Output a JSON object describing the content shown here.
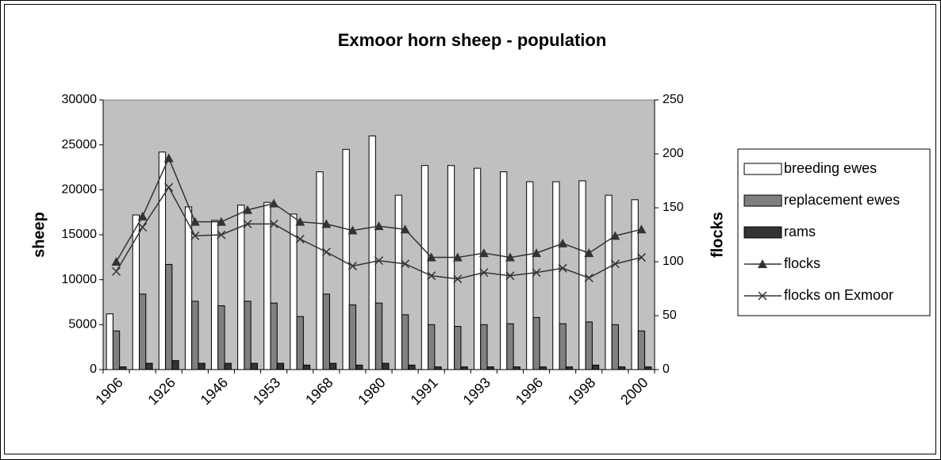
{
  "chart_data": {
    "type": "bar",
    "title": "Exmoor horn sheep  - population",
    "y_label": "sheep",
    "y2_label": "flocks",
    "categories": [
      "1906",
      null,
      "1926",
      null,
      "1946",
      null,
      "1953",
      null,
      "1968",
      null,
      "1980",
      null,
      "1991",
      null,
      "1993",
      null,
      "1996",
      null,
      "1998",
      null,
      "2000"
    ],
    "series": [
      {
        "name": "breeding ewes",
        "color": "#ffffff",
        "values": [
          6200,
          17200,
          24200,
          18100,
          16600,
          18300,
          18600,
          17300,
          22000,
          24500,
          26000,
          19400,
          22700,
          22700,
          22400,
          22000,
          20900,
          20900,
          21000,
          19400,
          18900
        ]
      },
      {
        "name": "replacement ewes",
        "color": "#808080",
        "values": [
          4300,
          8400,
          11700,
          7600,
          7100,
          7600,
          7400,
          5900,
          8400,
          7200,
          7400,
          6100,
          5000,
          4800,
          5000,
          5100,
          5800,
          5100,
          5300,
          5000,
          4300
        ]
      },
      {
        "name": "rams",
        "color": "#333333",
        "values": [
          300,
          700,
          1000,
          700,
          700,
          700,
          700,
          500,
          700,
          500,
          700,
          500,
          300,
          300,
          300,
          300,
          300,
          300,
          500,
          300,
          300
        ]
      },
      {
        "name": "flocks",
        "color": "#333333",
        "axis": "y2",
        "marker": "triangle",
        "values": [
          100,
          142,
          196,
          137,
          137,
          148,
          154,
          137,
          135,
          129,
          133,
          130,
          104,
          104,
          108,
          104,
          108,
          117,
          108,
          124,
          130
        ]
      },
      {
        "name": "flocks on Exmoor",
        "color": "#333333",
        "axis": "y2",
        "marker": "x",
        "values": [
          91,
          132,
          169,
          124,
          125,
          135,
          135,
          121,
          109,
          96,
          101,
          98,
          87,
          84,
          90,
          87,
          90,
          94,
          85,
          98,
          104
        ]
      }
    ],
    "ylim": [
      0,
      30000
    ],
    "yticks": [
      0,
      5000,
      10000,
      15000,
      20000,
      25000,
      30000
    ],
    "y2lim": [
      0,
      250
    ],
    "y2ticks": [
      0,
      50,
      100,
      150,
      200,
      250
    ],
    "grid": false,
    "plot_background": "#c0c0c0",
    "legend": "right"
  }
}
